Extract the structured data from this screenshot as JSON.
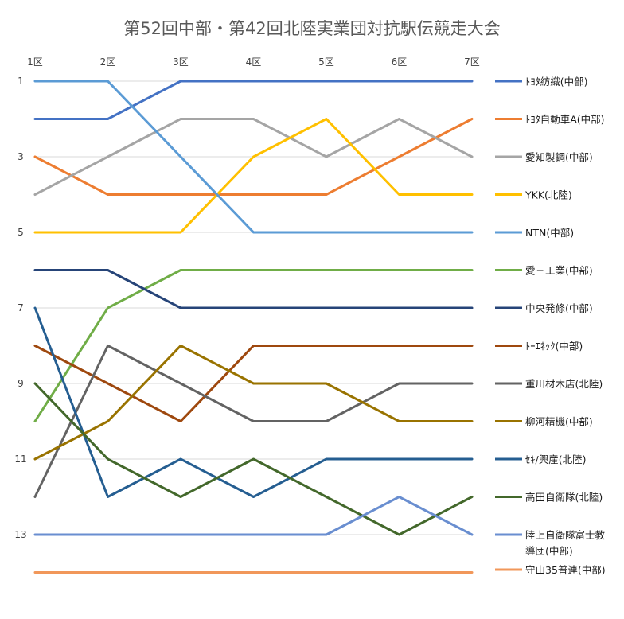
{
  "chart_data": {
    "type": "line",
    "title": "第52回中部・第42回北陸実業団対抗駅伝競走大会",
    "categories": [
      "1区",
      "2区",
      "3区",
      "4区",
      "5区",
      "6区",
      "7区"
    ],
    "y_ticks": [
      "1",
      "3",
      "5",
      "7",
      "9",
      "11",
      "13"
    ],
    "ylim": [
      1,
      14
    ],
    "y_reversed": true,
    "grid": true,
    "legend_position": "right",
    "series": [
      {
        "name": "ﾄﾖﾀ紡織(中部)",
        "color": "#4472C4",
        "values": [
          2,
          2,
          1,
          1,
          1,
          1,
          1
        ]
      },
      {
        "name": "ﾄﾖﾀ自動車A(中部)",
        "color": "#ED7D31",
        "values": [
          3,
          4,
          4,
          4,
          4,
          3,
          2
        ]
      },
      {
        "name": "愛知製鋼(中部)",
        "color": "#A5A5A5",
        "values": [
          4,
          3,
          2,
          2,
          3,
          2,
          3
        ]
      },
      {
        "name": "YKK(北陸)",
        "color": "#FFC000",
        "values": [
          5,
          5,
          5,
          3,
          2,
          4,
          4
        ]
      },
      {
        "name": "NTN(中部)",
        "color": "#5B9BD5",
        "values": [
          1,
          1,
          3,
          5,
          5,
          5,
          5
        ]
      },
      {
        "name": "愛三工業(中部)",
        "color": "#70AD47",
        "values": [
          10,
          7,
          6,
          6,
          6,
          6,
          6
        ]
      },
      {
        "name": "中央発條(中部)",
        "color": "#264478",
        "values": [
          6,
          6,
          7,
          7,
          7,
          7,
          7
        ]
      },
      {
        "name": "ﾄｰｴﾈｯｸ(中部)",
        "color": "#9E480E",
        "values": [
          8,
          9,
          10,
          8,
          8,
          8,
          8
        ]
      },
      {
        "name": "重川材木店(北陸)",
        "color": "#636363",
        "values": [
          12,
          8,
          9,
          10,
          10,
          9,
          9
        ]
      },
      {
        "name": "柳河精機(中部)",
        "color": "#997300",
        "values": [
          11,
          10,
          8,
          9,
          9,
          10,
          10
        ]
      },
      {
        "name": "ｾｷ/興産(北陸)",
        "color": "#255E91",
        "values": [
          7,
          12,
          11,
          12,
          11,
          11,
          11
        ]
      },
      {
        "name": "高田自衛隊(北陸)",
        "color": "#43682B",
        "values": [
          9,
          11,
          12,
          11,
          12,
          13,
          12
        ]
      },
      {
        "name": "陸上自衛隊富士教導団(中部)",
        "name_lines": [
          "陸上自衛隊富士教",
          "導団(中部)"
        ],
        "color": "#698ED0",
        "values": [
          13,
          13,
          13,
          13,
          13,
          12,
          13
        ]
      },
      {
        "name": "守山35普連(中部)",
        "color": "#F1975A",
        "values": [
          14,
          14,
          14,
          14,
          14,
          14,
          14
        ]
      }
    ]
  }
}
